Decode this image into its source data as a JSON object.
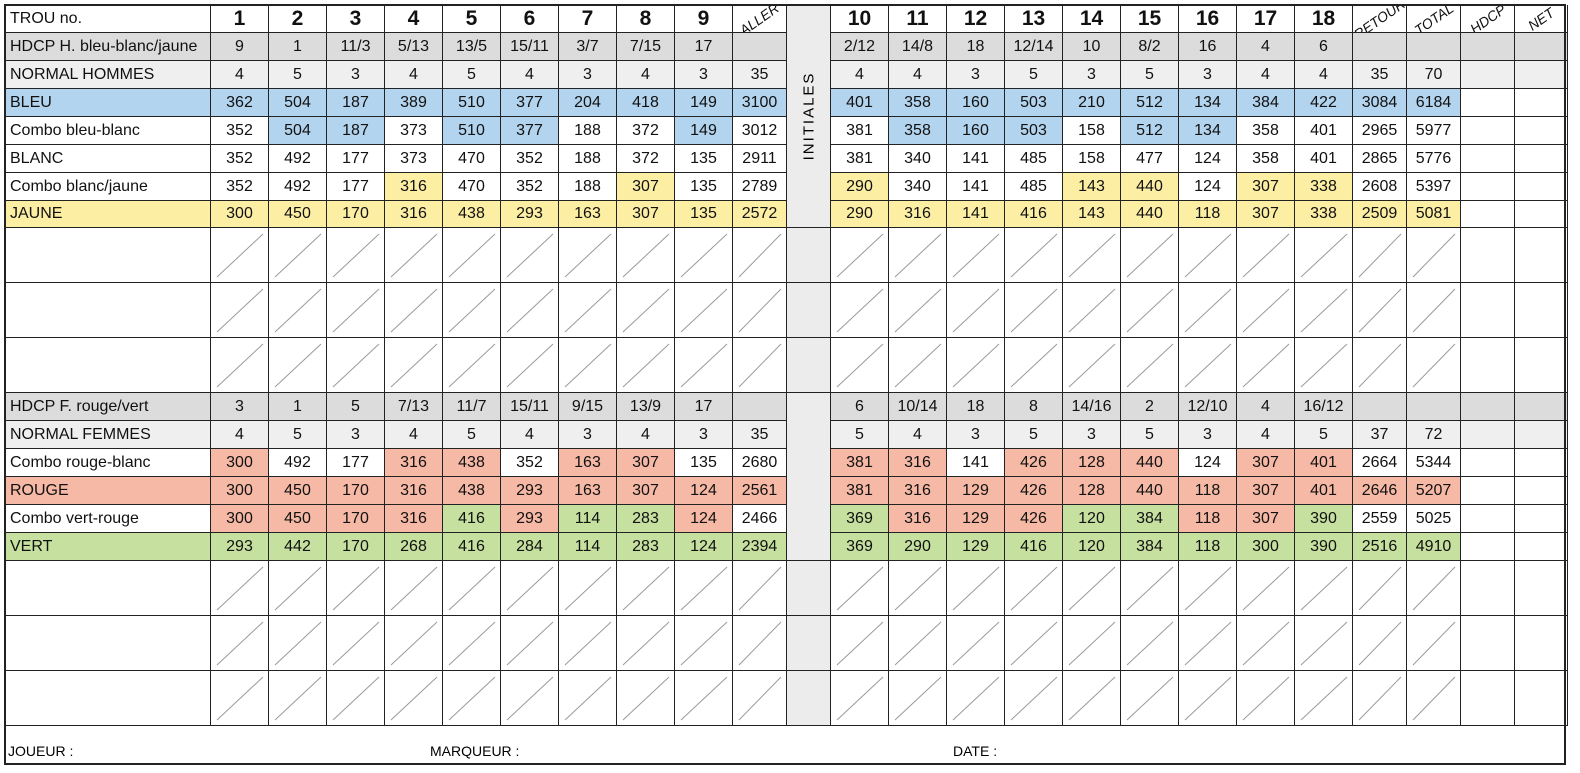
{
  "header": {
    "hole_label": "TROU no.",
    "holes_out": [
      "1",
      "2",
      "3",
      "4",
      "5",
      "6",
      "7",
      "8",
      "9"
    ],
    "holes_in": [
      "10",
      "11",
      "12",
      "13",
      "14",
      "15",
      "16",
      "17",
      "18"
    ],
    "aller": "ALLER",
    "retour": "RETOUR",
    "total": "TOTAL",
    "hdcp": "HDCP",
    "net": "NET",
    "initiales": "INITIALES"
  },
  "colors": {
    "blue": "#b3d4ee",
    "yellow": "#fcefa4",
    "red": "#f6b9a5",
    "green": "#c6e0a0",
    "gray": "#dcdcdc",
    "lightgray": "#efefef"
  },
  "men_rows": [
    {
      "label": "HDCP H. bleu-blanc/jaune",
      "bg": "gray",
      "out": [
        "9",
        "1",
        "11/3",
        "5/13",
        "13/5",
        "15/11",
        "3/7",
        "7/15",
        "17"
      ],
      "aller": "",
      "in": [
        "2/12",
        "14/8",
        "18",
        "12/14",
        "10",
        "8/2",
        "16",
        "4",
        "6"
      ],
      "retour": "",
      "total": ""
    },
    {
      "label": "NORMAL HOMMES",
      "bg": "lightgray",
      "out": [
        "4",
        "5",
        "3",
        "4",
        "5",
        "4",
        "3",
        "4",
        "3"
      ],
      "aller": "35",
      "in": [
        "4",
        "4",
        "3",
        "5",
        "3",
        "5",
        "3",
        "4",
        "4"
      ],
      "retour": "35",
      "total": "70"
    },
    {
      "label": "BLEU",
      "bg": "blue",
      "out": [
        "362",
        "504",
        "187",
        "389",
        "510",
        "377",
        "204",
        "418",
        "149"
      ],
      "aller": "3100",
      "in": [
        "401",
        "358",
        "160",
        "503",
        "210",
        "512",
        "134",
        "384",
        "422"
      ],
      "retour": "3084",
      "total": "6184"
    },
    {
      "label": "Combo bleu-blanc",
      "bg": "white",
      "out": [
        "352",
        "504",
        "187",
        "373",
        "510",
        "377",
        "188",
        "372",
        "149"
      ],
      "aller": "3012",
      "in": [
        "381",
        "358",
        "160",
        "503",
        "158",
        "512",
        "134",
        "358",
        "401"
      ],
      "retour": "2965",
      "total": "5977",
      "hl_out": [
        "",
        "blue",
        "blue",
        "",
        "blue",
        "blue",
        "",
        "",
        "blue"
      ],
      "hl_in": [
        "",
        "blue",
        "blue",
        "blue",
        "",
        "blue",
        "blue",
        "",
        ""
      ]
    },
    {
      "label": "BLANC",
      "bg": "white",
      "out": [
        "352",
        "492",
        "177",
        "373",
        "470",
        "352",
        "188",
        "372",
        "135"
      ],
      "aller": "2911",
      "in": [
        "381",
        "340",
        "141",
        "485",
        "158",
        "477",
        "124",
        "358",
        "401"
      ],
      "retour": "2865",
      "total": "5776"
    },
    {
      "label": "Combo blanc/jaune",
      "bg": "white",
      "out": [
        "352",
        "492",
        "177",
        "316",
        "470",
        "352",
        "188",
        "307",
        "135"
      ],
      "aller": "2789",
      "in": [
        "290",
        "340",
        "141",
        "485",
        "143",
        "440",
        "124",
        "307",
        "338"
      ],
      "retour": "2608",
      "total": "5397",
      "hl_out": [
        "",
        "",
        "",
        "yellow",
        "",
        "",
        "",
        "yellow",
        ""
      ],
      "hl_in": [
        "yellow",
        "",
        "",
        "",
        "yellow",
        "yellow",
        "",
        "yellow",
        "yellow"
      ]
    },
    {
      "label": "JAUNE",
      "bg": "yellow",
      "out": [
        "300",
        "450",
        "170",
        "316",
        "438",
        "293",
        "163",
        "307",
        "135"
      ],
      "aller": "2572",
      "in": [
        "290",
        "316",
        "141",
        "416",
        "143",
        "440",
        "118",
        "307",
        "338"
      ],
      "retour": "2509",
      "total": "5081"
    }
  ],
  "women_rows": [
    {
      "label": "HDCP F. rouge/vert",
      "bg": "gray",
      "out": [
        "3",
        "1",
        "5",
        "7/13",
        "11/7",
        "15/11",
        "9/15",
        "13/9",
        "17"
      ],
      "aller": "",
      "in": [
        "6",
        "10/14",
        "18",
        "8",
        "14/16",
        "2",
        "12/10",
        "4",
        "16/12"
      ],
      "retour": "",
      "total": ""
    },
    {
      "label": "NORMAL FEMMES",
      "bg": "lightgray",
      "out": [
        "4",
        "5",
        "3",
        "4",
        "5",
        "4",
        "3",
        "4",
        "3"
      ],
      "aller": "35",
      "in": [
        "5",
        "4",
        "3",
        "5",
        "3",
        "5",
        "3",
        "4",
        "5"
      ],
      "retour": "37",
      "total": "72"
    },
    {
      "label": "Combo rouge-blanc",
      "bg": "white",
      "out": [
        "300",
        "492",
        "177",
        "316",
        "438",
        "352",
        "163",
        "307",
        "135"
      ],
      "aller": "2680",
      "in": [
        "381",
        "316",
        "141",
        "426",
        "128",
        "440",
        "124",
        "307",
        "401"
      ],
      "retour": "2664",
      "total": "5344",
      "hl_out": [
        "red",
        "",
        "",
        "red",
        "red",
        "",
        "red",
        "red",
        ""
      ],
      "hl_in": [
        "red",
        "red",
        "",
        "red",
        "red",
        "red",
        "",
        "red",
        "red"
      ]
    },
    {
      "label": "ROUGE",
      "bg": "red",
      "out": [
        "300",
        "450",
        "170",
        "316",
        "438",
        "293",
        "163",
        "307",
        "124"
      ],
      "aller": "2561",
      "in": [
        "381",
        "316",
        "129",
        "426",
        "128",
        "440",
        "118",
        "307",
        "401"
      ],
      "retour": "2646",
      "total": "5207"
    },
    {
      "label": "Combo vert-rouge",
      "bg": "white",
      "out": [
        "300",
        "450",
        "170",
        "316",
        "416",
        "293",
        "114",
        "283",
        "124"
      ],
      "aller": "2466",
      "in": [
        "369",
        "316",
        "129",
        "426",
        "120",
        "384",
        "118",
        "307",
        "390"
      ],
      "retour": "2559",
      "total": "5025",
      "hl_out": [
        "red",
        "red",
        "red",
        "red",
        "green",
        "red",
        "green",
        "green",
        "red"
      ],
      "hl_in": [
        "green",
        "red",
        "red",
        "red",
        "green",
        "green",
        "red",
        "red",
        "green"
      ]
    },
    {
      "label": "VERT",
      "bg": "green",
      "out": [
        "293",
        "442",
        "170",
        "268",
        "416",
        "284",
        "114",
        "283",
        "124"
      ],
      "aller": "2394",
      "in": [
        "369",
        "290",
        "129",
        "416",
        "120",
        "384",
        "118",
        "300",
        "390"
      ],
      "retour": "2516",
      "total": "4910"
    }
  ],
  "footer": {
    "player": "JOUEUR :",
    "marker": "MARQUEUR :",
    "date": "DATE :"
  }
}
